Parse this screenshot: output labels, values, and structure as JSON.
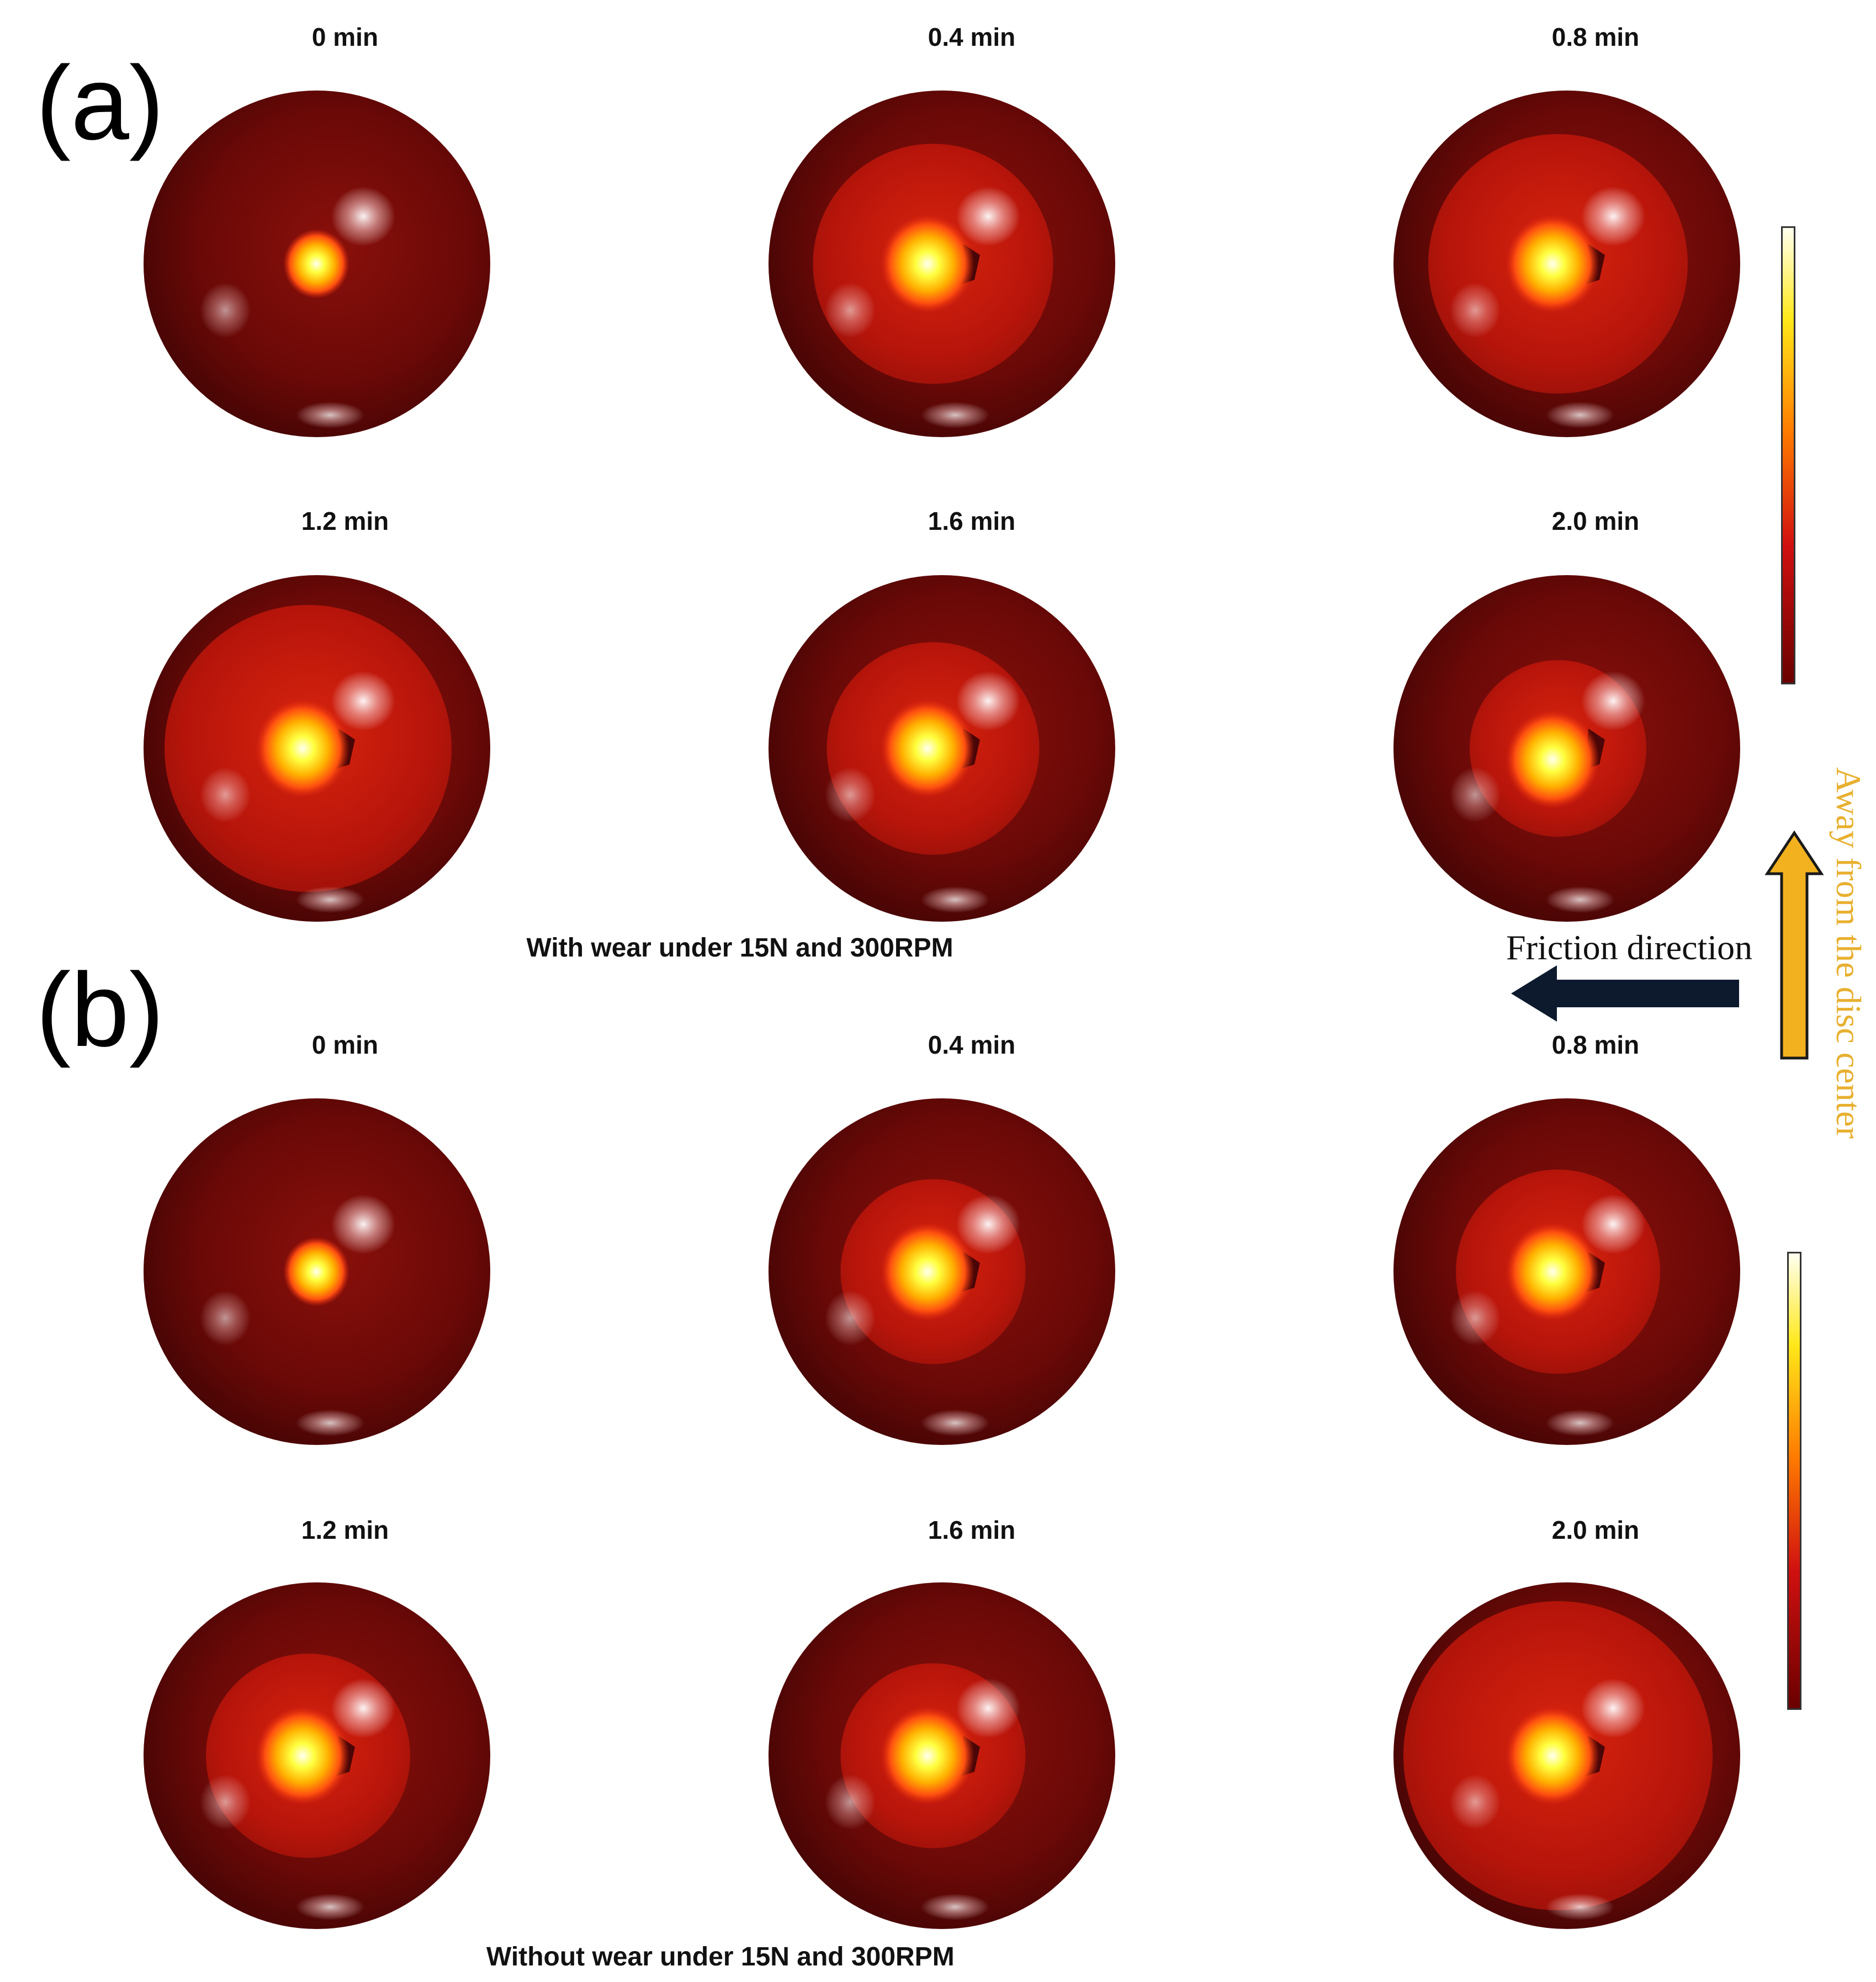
{
  "panels": [
    {
      "letter": "(a)",
      "caption": "With wear under 15N and 300RPM",
      "times": [
        "0 min",
        "0.4 min",
        "0.8 min",
        "1.2 min",
        "1.6 min",
        "2.0 min"
      ]
    },
    {
      "letter": "(b)",
      "caption": "Without wear under 15N and 300RPM",
      "times": [
        "0 min",
        "0.4 min",
        "0.8 min",
        "1.2 min",
        "1.6 min",
        "2.0 min"
      ]
    }
  ],
  "annotations": {
    "friction_direction": "Friction direction",
    "disc_center": "Away from the disc center"
  },
  "colors": {
    "sphere_base": "#6e0a08",
    "heated_zone": "#c8180c",
    "hotspot_core": "#ffff40",
    "friction_arrow": "#0d1a2e",
    "disc_arrow": "#f0b020",
    "disc_text": "#e8b030"
  },
  "heated_zone_levels": {
    "a": [
      0.0,
      0.55,
      0.62,
      0.72,
      0.45,
      0.32
    ],
    "b": [
      0.0,
      0.35,
      0.42,
      0.42,
      0.35,
      0.8
    ]
  }
}
